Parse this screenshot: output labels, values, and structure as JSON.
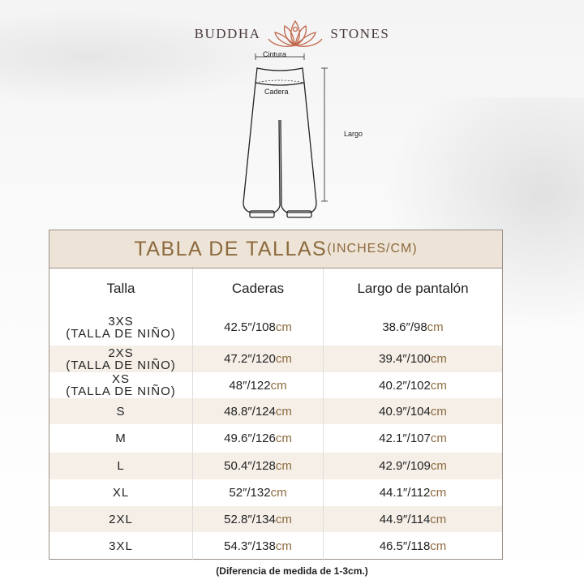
{
  "brand": {
    "left": "BUDDHA",
    "right": "STONES"
  },
  "diagram": {
    "waist": "Cintura",
    "hip": "Cadera",
    "length": "Largo"
  },
  "table": {
    "title": "TABLA DE TALLAS",
    "title_unit": "(INCHES/CM)",
    "headers": [
      "Talla",
      "Caderas",
      "Largo de pantalón"
    ],
    "rows": [
      {
        "size": "3XS",
        "sub": "(TALLA DE NIÑO)",
        "hip_in": "42.5″/108",
        "hip_cm": "cm",
        "len_in": "38.6″/98",
        "len_cm": "cm"
      },
      {
        "size": "2XS",
        "sub": "(TALLA DE NIÑO)",
        "hip_in": "47.2″/120",
        "hip_cm": "cm",
        "len_in": "39.4″/100",
        "len_cm": "cm"
      },
      {
        "size": "XS",
        "sub": "(TALLA DE NIÑO)",
        "hip_in": "48″/122",
        "hip_cm": "cm",
        "len_in": "40.2″/102",
        "len_cm": "cm"
      },
      {
        "size": "S",
        "hip_in": "48.8″/124",
        "hip_cm": "cm",
        "len_in": "40.9″/104",
        "len_cm": "cm"
      },
      {
        "size": "M",
        "hip_in": "49.6″/126",
        "hip_cm": "cm",
        "len_in": "42.1″/107",
        "len_cm": "cm"
      },
      {
        "size": "L",
        "hip_in": "50.4″/128",
        "hip_cm": "cm",
        "len_in": "42.9″/109",
        "len_cm": "cm"
      },
      {
        "size": "XL",
        "hip_in": "52″/132",
        "hip_cm": "cm",
        "len_in": "44.1″/112",
        "len_cm": "cm"
      },
      {
        "size": "2XL",
        "hip_in": "52.8″/134",
        "hip_cm": "cm",
        "len_in": "44.9″/114",
        "len_cm": "cm"
      },
      {
        "size": "3XL",
        "hip_in": "54.3″/138",
        "hip_cm": "cm",
        "len_in": "46.5″/118",
        "len_cm": "cm"
      }
    ]
  },
  "note": "(Diferencia de medida de 1-3cm.)",
  "colors": {
    "accent": "#8c6a3e",
    "header_bg": "#ede3d6",
    "alt_row": "#f5efe8",
    "logo": "#c0664a"
  }
}
